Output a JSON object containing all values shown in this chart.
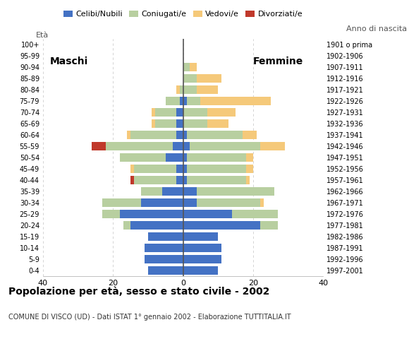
{
  "age_groups": [
    "100+",
    "95-99",
    "90-94",
    "85-89",
    "80-84",
    "75-79",
    "70-74",
    "65-69",
    "60-64",
    "55-59",
    "50-54",
    "45-49",
    "40-44",
    "35-39",
    "30-34",
    "25-29",
    "20-24",
    "15-19",
    "10-14",
    "5-9",
    "0-4"
  ],
  "birth_years": [
    "1901 o prima",
    "1902-1906",
    "1907-1911",
    "1912-1916",
    "1917-1921",
    "1922-1926",
    "1927-1931",
    "1932-1936",
    "1937-1941",
    "1942-1946",
    "1947-1951",
    "1952-1956",
    "1957-1961",
    "1962-1966",
    "1967-1971",
    "1972-1976",
    "1977-1981",
    "1982-1986",
    "1987-1991",
    "1992-1996",
    "1997-2001"
  ],
  "males": {
    "celibinubili": [
      0,
      0,
      0,
      0,
      0,
      1,
      2,
      2,
      2,
      3,
      5,
      2,
      2,
      6,
      12,
      18,
      15,
      10,
      11,
      11,
      10
    ],
    "coniugati": [
      0,
      0,
      0,
      0,
      1,
      4,
      6,
      6,
      13,
      19,
      13,
      12,
      12,
      6,
      11,
      5,
      2,
      0,
      0,
      0,
      0
    ],
    "vedovi": [
      0,
      0,
      0,
      0,
      1,
      0,
      1,
      1,
      1,
      0,
      0,
      1,
      0,
      0,
      0,
      0,
      0,
      0,
      0,
      0,
      0
    ],
    "divorziati": [
      0,
      0,
      0,
      0,
      0,
      0,
      0,
      0,
      0,
      4,
      0,
      0,
      1,
      0,
      0,
      0,
      0,
      0,
      0,
      0,
      0
    ]
  },
  "females": {
    "celibinubili": [
      0,
      0,
      0,
      0,
      0,
      1,
      0,
      0,
      1,
      2,
      1,
      1,
      1,
      4,
      4,
      14,
      22,
      10,
      11,
      11,
      10
    ],
    "coniugate": [
      0,
      0,
      2,
      4,
      4,
      4,
      7,
      7,
      16,
      20,
      17,
      17,
      17,
      22,
      18,
      13,
      5,
      0,
      0,
      0,
      0
    ],
    "vedove": [
      0,
      0,
      2,
      7,
      6,
      20,
      8,
      6,
      4,
      7,
      2,
      2,
      1,
      0,
      1,
      0,
      0,
      0,
      0,
      0,
      0
    ],
    "divorziate": [
      0,
      0,
      0,
      0,
      0,
      0,
      0,
      0,
      0,
      0,
      0,
      0,
      0,
      0,
      0,
      0,
      0,
      0,
      0,
      0,
      0
    ]
  },
  "colors": {
    "celibinubili": "#4472c4",
    "coniugati": "#b8cfa0",
    "vedovi": "#f5c97a",
    "divorziati": "#c0392b"
  },
  "legend_labels": [
    "Celibi/Nubili",
    "Coniugati/e",
    "Vedovi/e",
    "Divorziati/e"
  ],
  "title": "Popolazione per età, sesso e stato civile - 2002",
  "subtitle": "COMUNE DI VISCO (UD) - Dati ISTAT 1° gennaio 2002 - Elaborazione TUTTITALIA.IT",
  "eta_label": "Età",
  "maschi_label": "Maschi",
  "femmine_label": "Femmine",
  "anno_nascita_label": "Anno di nascita",
  "xlim": 40,
  "background_color": "#ffffff",
  "grid_color": "#cccccc",
  "zero_line_color": "#555555"
}
